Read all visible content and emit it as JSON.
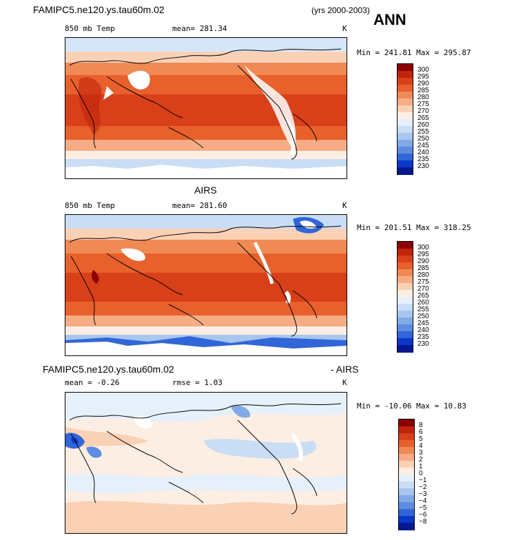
{
  "header": {
    "model_title": "FAMIPC5.ne120.ys.tau60m.02",
    "years": "(yrs 2000-2003)",
    "season": "ANN"
  },
  "panels": [
    {
      "title": "",
      "left_label": "850 mb Temp",
      "stats_label": "mean= 281.34",
      "units": "K",
      "minmax": "Min = 241.81 Max = 295.87",
      "colorbar": {
        "levels": [
          "300",
          "295",
          "290",
          "285",
          "280",
          "275",
          "270",
          "265",
          "260",
          "255",
          "250",
          "245",
          "240",
          "235",
          "230"
        ],
        "colors": [
          "#8b0000",
          "#c1230c",
          "#d8401a",
          "#e8602c",
          "#f08a55",
          "#f6ad85",
          "#fbd1b6",
          "#fdeee4",
          "#e6f0fb",
          "#c9ddf5",
          "#a8c6ee",
          "#83aae6",
          "#5d8ce0",
          "#3166d8",
          "#0a36c9",
          "#06188f"
        ]
      }
    },
    {
      "title": "AIRS",
      "left_label": "850 mb Temp",
      "stats_label": "mean= 281.60",
      "units": "K",
      "minmax": "Min = 201.51 Max = 318.25",
      "colorbar": {
        "levels": [
          "300",
          "295",
          "290",
          "285",
          "280",
          "275",
          "270",
          "265",
          "260",
          "255",
          "250",
          "245",
          "240",
          "235",
          "230"
        ],
        "colors": [
          "#8b0000",
          "#c1230c",
          "#d8401a",
          "#e8602c",
          "#f08a55",
          "#f6ad85",
          "#fbd1b6",
          "#fdeee4",
          "#e6f0fb",
          "#c9ddf5",
          "#a8c6ee",
          "#83aae6",
          "#5d8ce0",
          "#3166d8",
          "#0a36c9",
          "#06188f"
        ]
      }
    },
    {
      "title_left": "FAMIPC5.ne120.ys.tau60m.02",
      "title_right": "- AIRS",
      "left_label": "mean =  -0.26",
      "stats_label": "rmse =   1.03",
      "units": "K",
      "minmax": "Min = -10.06 Max =  10.83",
      "colorbar": {
        "levels": [
          "8",
          "6",
          "5",
          "4",
          "3",
          "2",
          "1",
          "0",
          "−1",
          "−2",
          "−3",
          "−4",
          "−5",
          "−6",
          "−8"
        ],
        "colors": [
          "#8b0000",
          "#c1230c",
          "#d8401a",
          "#e8602c",
          "#f08a55",
          "#f6ad85",
          "#fbd1b6",
          "#fdeee4",
          "#e6f0fb",
          "#c9ddf5",
          "#a8c6ee",
          "#83aae6",
          "#5d8ce0",
          "#3166d8",
          "#0a36c9",
          "#06188f"
        ]
      }
    }
  ]
}
